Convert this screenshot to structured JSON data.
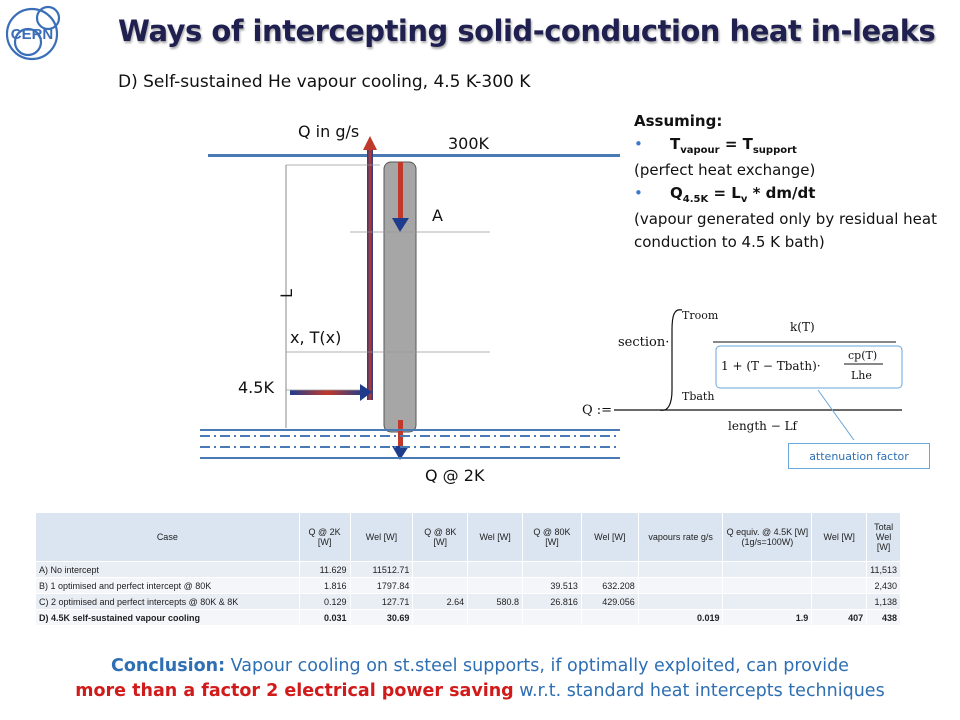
{
  "slide": {
    "title": "Ways of intercepting solid-conduction heat in-leaks",
    "subtitle": "D) Self-sustained He vapour cooling, 4.5 K-300 K",
    "logo_text": "CERN"
  },
  "diagram": {
    "label_q_in": "Q in g/s",
    "label_300k": "300K",
    "label_a": "A",
    "label_l": "L",
    "label_x": "x, T(x)",
    "label_45k": "4.5K",
    "label_q2k": "Q @ 2K"
  },
  "assuming": {
    "heading": "Assuming:",
    "b1_main": "T",
    "b1_sub": "vapour",
    "b1_mid": " = T",
    "b1_sub2": "support",
    "b1_note": "(perfect heat exchange)",
    "b2_main": "Q",
    "b2_sub": "4.5K",
    "b2_mid": " = L",
    "b2_sub2": "v",
    "b2_end": " * dm/dt",
    "b2_note": "(vapour generated only by residual heat conduction to 4.5 K bath)"
  },
  "formula": {
    "section": "section·",
    "troom": "Troom",
    "tbath": "Tbath",
    "kt": "k(T)",
    "denom_left": "1 + (T − Tbath)·",
    "cpt": "cp(T)",
    "lhe": "Lhe",
    "q_assign": "Q :=",
    "length": "length − Lf",
    "attenuation": "attenuation factor"
  },
  "table": {
    "headers": [
      "Case",
      "Q @ 2K [W]",
      "Wel [W]",
      "Q @ 8K [W]",
      "Wel [W]",
      "Q @ 80K [W]",
      "Wel [W]",
      "vapours rate g/s",
      "Q equiv. @ 4.5K [W] (1g/s=100W)",
      "Wel [W]",
      "Total Wel [W]"
    ],
    "rows": [
      [
        "A) No intercept",
        "11.629",
        "11512.71",
        "",
        "",
        "",
        "",
        "",
        "",
        "",
        "11,513"
      ],
      [
        "B) 1 optimised and perfect intercept @ 80K",
        "1.816",
        "1797.84",
        "",
        "",
        "39.513",
        "632.208",
        "",
        "",
        "",
        "2,430"
      ],
      [
        "C) 2 optimised and perfect intercepts @ 80K & 8K",
        "0.129",
        "127.71",
        "2.64",
        "580.8",
        "26.816",
        "429.056",
        "",
        "",
        "",
        "1,138"
      ],
      [
        "D) 4.5K self-sustained vapour cooling",
        "0.031",
        "30.69",
        "",
        "",
        "",
        "",
        "0.019",
        "1.9",
        "407",
        "438"
      ]
    ]
  },
  "conclusion": {
    "lead": "Conclusion:",
    "text1": " Vapour cooling on st.steel supports, if optimally exploited, can provide",
    "highlight": "more than a factor 2 electrical power saving",
    "text2": " w.r.t. standard heat intercepts techniques"
  },
  "colors": {
    "title": "#1f1f50",
    "accent_blue": "#2e6fb3",
    "accent_red": "#d11a1a",
    "plate": "#4a7ab5",
    "support": "#a6a6a6",
    "arrow_blue": "#1f3c8c",
    "arrow_red": "#c0392b"
  }
}
